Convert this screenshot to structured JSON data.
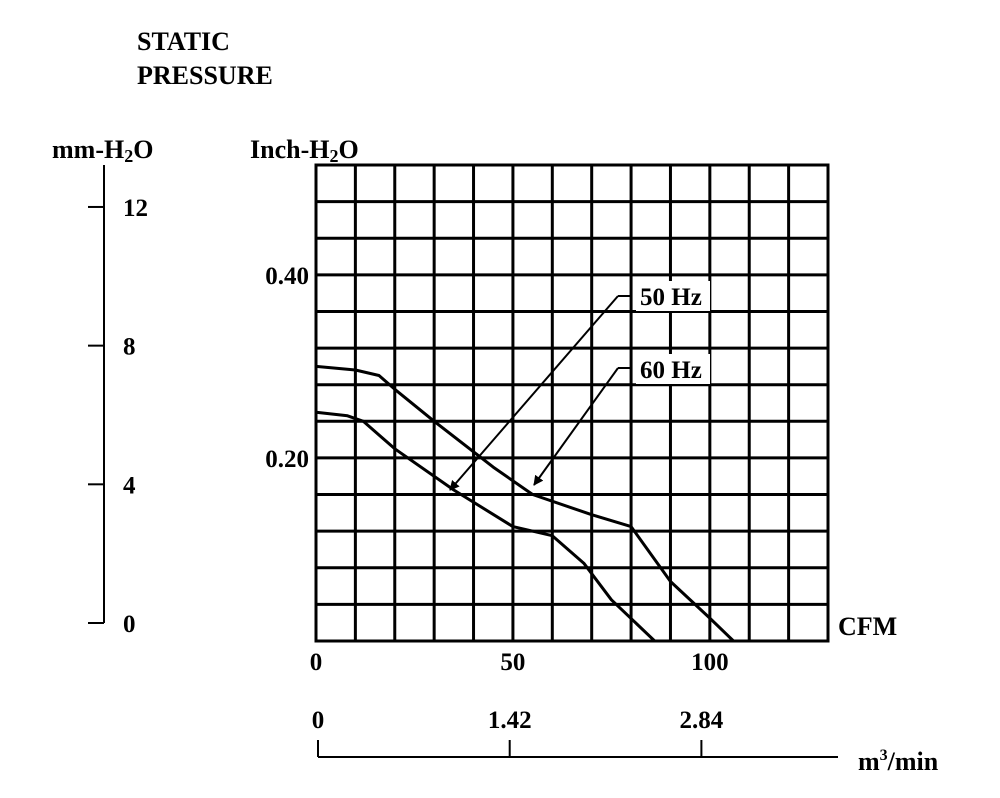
{
  "title": {
    "line1": "STATIC",
    "line2": "PRESSURE"
  },
  "chart_data": {
    "type": "line",
    "title": "STATIC PRESSURE",
    "xlabel": "CFM",
    "ylabel": "Inch-H2O",
    "xlim": [
      0,
      130
    ],
    "ylim": [
      0,
      0.52
    ],
    "grid": true,
    "x_ticks": [
      0,
      50,
      100
    ],
    "x_tick_labels": [
      "0",
      "50",
      "100"
    ],
    "y_ticks": [
      0.2,
      0.4
    ],
    "y_tick_labels": [
      "0.20",
      "0.40"
    ],
    "secondary_y_axis": {
      "label": "mm-H2O",
      "ticks": [
        0,
        4,
        8,
        12
      ],
      "tick_labels": [
        "0",
        "4",
        "8",
        "12"
      ]
    },
    "secondary_x_axis": {
      "label": "m3/min",
      "ticks": [
        0,
        1.42,
        2.84
      ],
      "tick_labels": [
        "0",
        "1.42",
        "2.84"
      ]
    },
    "series": [
      {
        "name": "50 Hz",
        "x": [
          0,
          8,
          12,
          20,
          35,
          50,
          60,
          68,
          75,
          86
        ],
        "y": [
          0.25,
          0.246,
          0.24,
          0.21,
          0.165,
          0.125,
          0.115,
          0.085,
          0.045,
          0.0
        ]
      },
      {
        "name": "60 Hz",
        "x": [
          0,
          10,
          16,
          20,
          30,
          45,
          55,
          70,
          80,
          90,
          100,
          106
        ],
        "y": [
          0.3,
          0.296,
          0.29,
          0.275,
          0.24,
          0.19,
          0.16,
          0.138,
          0.125,
          0.065,
          0.025,
          0.0
        ]
      }
    ],
    "annotations": [
      {
        "text": "50 Hz",
        "target": "50 Hz"
      },
      {
        "text": "60 Hz",
        "target": "60 Hz"
      }
    ]
  }
}
